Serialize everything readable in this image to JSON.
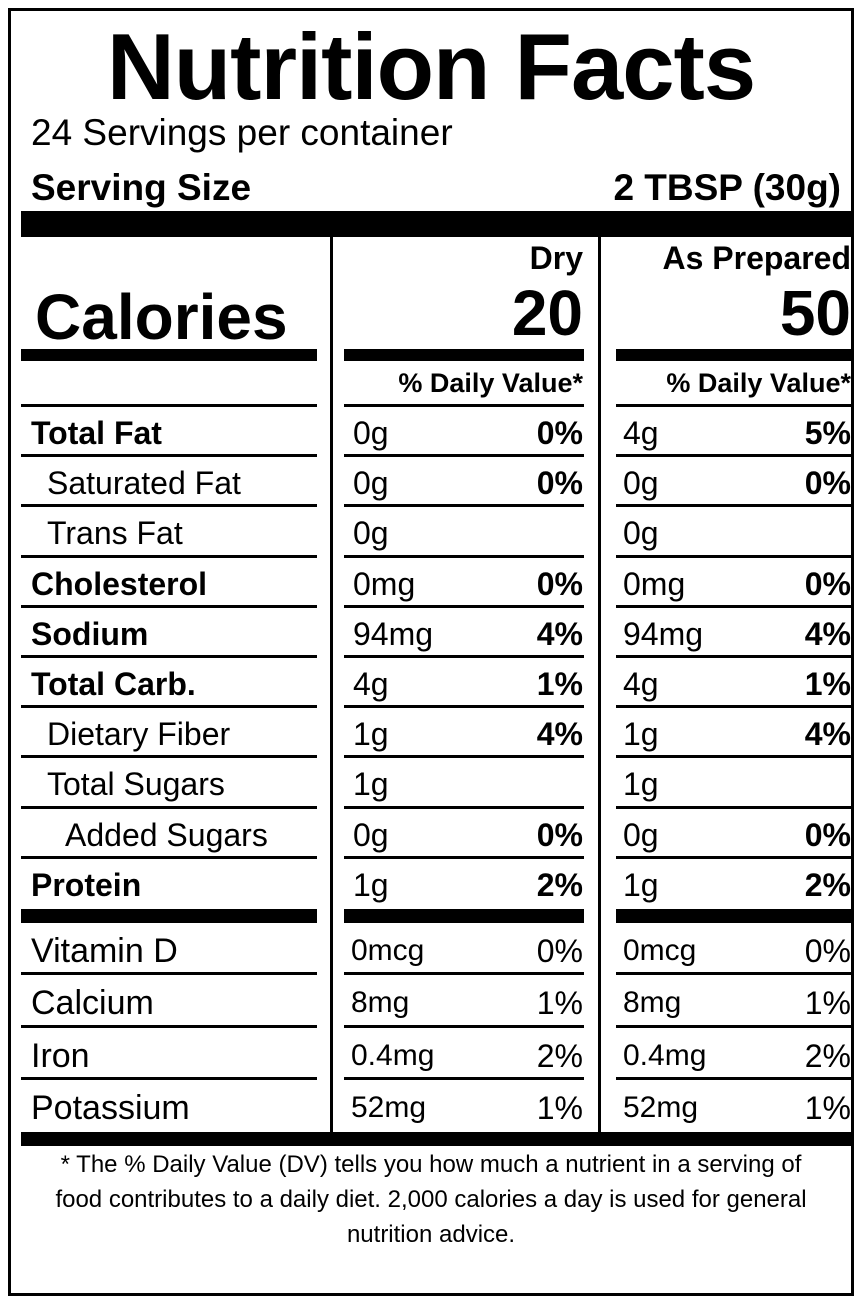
{
  "title": "Nutrition Facts",
  "servings": "24 Servings per container",
  "serving_size": {
    "label": "Serving Size",
    "value": "2 TBSP (30g)"
  },
  "calories": {
    "label": "Calories",
    "columns": [
      {
        "header": "Dry",
        "value": "20",
        "dv_header": "% Daily Value*"
      },
      {
        "header": "As Prepared",
        "value": "50",
        "dv_header": "% Daily Value*"
      }
    ]
  },
  "nutrients": [
    {
      "name": "Total Fat",
      "bold": true,
      "indent": 0,
      "dry_amount": "0g",
      "dry_dv": "0%",
      "prep_amount": "4g",
      "prep_dv": "5%"
    },
    {
      "name": "Saturated Fat",
      "bold": false,
      "indent": 1,
      "dry_amount": "0g",
      "dry_dv": "0%",
      "prep_amount": "0g",
      "prep_dv": "0%"
    },
    {
      "name": "Trans Fat",
      "bold": false,
      "indent": 1,
      "dry_amount": "0g",
      "dry_dv": "",
      "prep_amount": "0g",
      "prep_dv": ""
    },
    {
      "name": "Cholesterol",
      "bold": true,
      "indent": 0,
      "dry_amount": "0mg",
      "dry_dv": "0%",
      "prep_amount": "0mg",
      "prep_dv": "0%"
    },
    {
      "name": "Sodium",
      "bold": true,
      "indent": 0,
      "dry_amount": "94mg",
      "dry_dv": "4%",
      "prep_amount": "94mg",
      "prep_dv": "4%"
    },
    {
      "name": "Total Carb.",
      "bold": true,
      "indent": 0,
      "dry_amount": "4g",
      "dry_dv": "1%",
      "prep_amount": "4g",
      "prep_dv": "1%"
    },
    {
      "name": "Dietary Fiber",
      "bold": false,
      "indent": 1,
      "dry_amount": "1g",
      "dry_dv": "4%",
      "prep_amount": "1g",
      "prep_dv": "4%"
    },
    {
      "name": "Total Sugars",
      "bold": false,
      "indent": 1,
      "dry_amount": "1g",
      "dry_dv": "",
      "prep_amount": "1g",
      "prep_dv": ""
    },
    {
      "name": "Added Sugars",
      "bold": false,
      "indent": 2,
      "dry_amount": "0g",
      "dry_dv": "0%",
      "prep_amount": "0g",
      "prep_dv": "0%"
    },
    {
      "name": "Protein",
      "bold": true,
      "indent": 0,
      "dry_amount": "1g",
      "dry_dv": "2%",
      "prep_amount": "1g",
      "prep_dv": "2%"
    }
  ],
  "vitamins": [
    {
      "name": "Vitamin D",
      "dry_amount": "0mcg",
      "dry_dv": "0%",
      "prep_amount": "0mcg",
      "prep_dv": "0%"
    },
    {
      "name": "Calcium",
      "dry_amount": "8mg",
      "dry_dv": "1%",
      "prep_amount": "8mg",
      "prep_dv": "1%"
    },
    {
      "name": "Iron",
      "dry_amount": "0.4mg",
      "dry_dv": "2%",
      "prep_amount": "0.4mg",
      "prep_dv": "2%"
    },
    {
      "name": "Potassium",
      "dry_amount": "52mg",
      "dry_dv": "1%",
      "prep_amount": "52mg",
      "prep_dv": "1%"
    }
  ],
  "footnote": "* The % Daily Value (DV) tells you how much a nutrient in a serving of food contributes to a daily diet. 2,000 calories a day is used for general nutrition advice."
}
